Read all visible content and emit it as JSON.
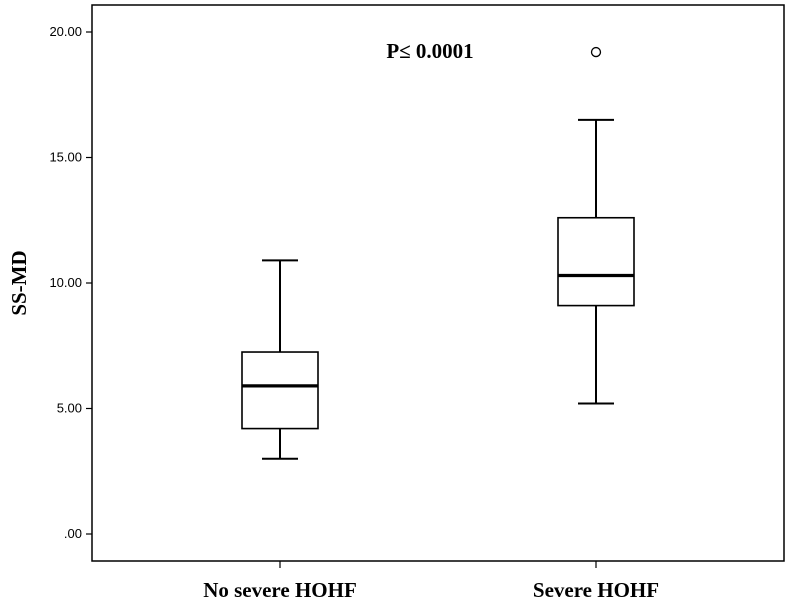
{
  "chart_data": {
    "type": "box",
    "title": "",
    "xlabel": "",
    "ylabel": "SS-MD",
    "ylim": [
      0,
      21
    ],
    "yticks": [
      0,
      5,
      10,
      15,
      20
    ],
    "ytick_labels": [
      ".00",
      "5.00",
      "10.00",
      "15.00",
      "20.00"
    ],
    "grid": false,
    "annotation": "P≤ 0.0001",
    "categories": [
      "No severe HOHF",
      "Severe HOHF"
    ],
    "boxes": [
      {
        "category": "No severe HOHF",
        "whisker_low": 3.0,
        "q1": 4.2,
        "median": 5.9,
        "q3": 7.25,
        "whisker_high": 10.9,
        "outliers": []
      },
      {
        "category": "Severe HOHF",
        "whisker_low": 5.2,
        "q1": 9.1,
        "median": 10.3,
        "q3": 12.6,
        "whisker_high": 16.5,
        "outliers": [
          19.2
        ]
      }
    ]
  }
}
